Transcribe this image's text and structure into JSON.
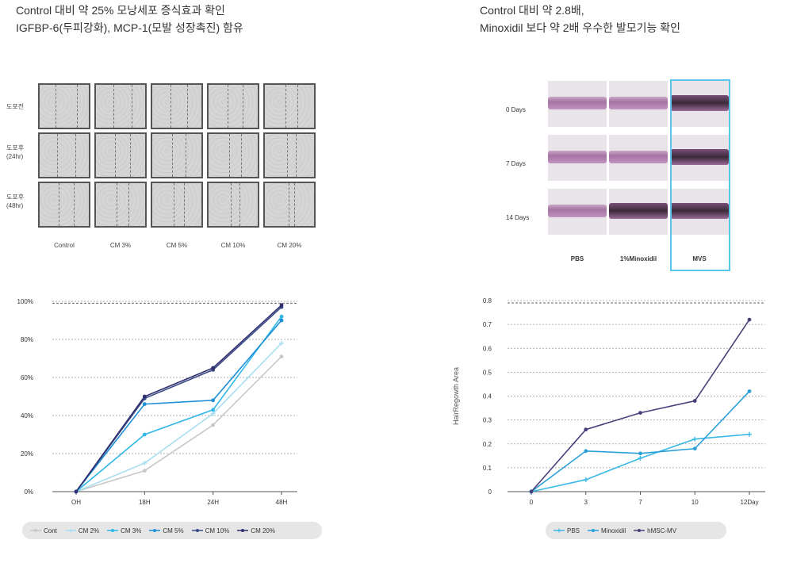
{
  "captions": {
    "left_line1": "Control 대비 약 25% 모낭세포 증식효과 확인",
    "left_line2": "IGFBP-6(두피강화), MCP-1(모발 성장촉진) 함유",
    "right_line1": "Control 대비 약 2.8배,",
    "right_line2": "Minoxidil 보다 약 2배 우수한 발모기능 확인"
  },
  "migration_panel": {
    "row_labels": [
      "도포전",
      "도포후\n(24hr)",
      "도포후\n(48hr)"
    ],
    "col_labels": [
      "Control",
      "CM 3%",
      "CM 5%",
      "CM 10%",
      "CM 20%"
    ]
  },
  "histology_panel": {
    "row_labels": [
      "0 Days",
      "7 Days",
      "14 Days"
    ],
    "col_labels": [
      "PBS",
      "1%Minoxidil",
      "MVS"
    ],
    "highlight_color": "#5bc6ec"
  },
  "chart_data": [
    {
      "type": "line",
      "title": "",
      "xlabel": "",
      "ylabel": "",
      "categories": [
        "OH",
        "18H",
        "24H",
        "48H"
      ],
      "y_tick_labels": [
        "0%",
        "20%",
        "40%",
        "60%",
        "80%",
        "100%"
      ],
      "ylim": [
        0,
        100
      ],
      "grid": true,
      "reference_line": 99,
      "legend_position": "bottom",
      "series": [
        {
          "name": "Cont",
          "color": "#c8c8c8",
          "marker": "dot",
          "values": [
            0,
            11,
            35,
            71
          ]
        },
        {
          "name": "CM 2%",
          "color": "#a9def2",
          "marker": "plus",
          "values": [
            0,
            15,
            41,
            78
          ]
        },
        {
          "name": "CM 3%",
          "color": "#2fb7e8",
          "marker": "dot",
          "values": [
            0,
            30,
            43,
            92
          ]
        },
        {
          "name": "CM 5%",
          "color": "#1f8fd6",
          "marker": "dot",
          "values": [
            0,
            46,
            48,
            90
          ]
        },
        {
          "name": "CM 10%",
          "color": "#3a4a86",
          "marker": "dot",
          "values": [
            0,
            49,
            64,
            97
          ]
        },
        {
          "name": "CM 20%",
          "color": "#2e2f6e",
          "marker": "dot",
          "values": [
            0,
            50,
            65,
            98
          ]
        }
      ]
    },
    {
      "type": "line",
      "title": "",
      "xlabel": "",
      "ylabel": "HairRegowth Area",
      "categories": [
        "0",
        "3",
        "7",
        "10",
        "12Day"
      ],
      "y_tick_labels": [
        "0",
        "0.1",
        "0.2",
        "0.3",
        "0.4",
        "0.5",
        "0.6",
        "0.7",
        "0.8"
      ],
      "ylim": [
        0,
        0.8
      ],
      "grid": true,
      "reference_line": 0.79,
      "legend_position": "bottom",
      "series": [
        {
          "name": "PBS",
          "color": "#3ab8e6",
          "marker": "plus",
          "values": [
            0,
            0.05,
            0.14,
            0.22,
            0.24
          ]
        },
        {
          "name": "Minoxidil",
          "color": "#2a9fd8",
          "marker": "dot",
          "values": [
            0,
            0.17,
            0.16,
            0.18,
            0.42
          ]
        },
        {
          "name": "hMSC-MV",
          "color": "#4b3e7a",
          "marker": "dot",
          "values": [
            0,
            0.26,
            0.33,
            0.38,
            0.72
          ]
        }
      ]
    }
  ]
}
